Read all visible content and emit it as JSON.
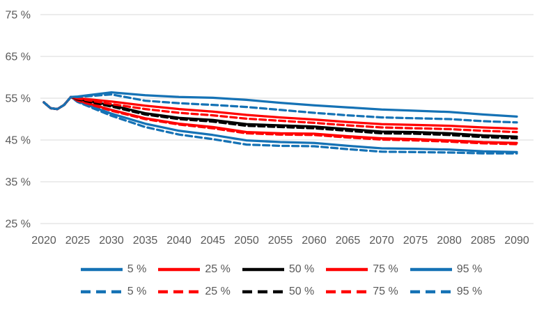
{
  "page": {
    "background": "#FFFFFF",
    "text_color": "#595959",
    "gridline_color": "#D9D9D9"
  },
  "chart_data": {
    "type": "line",
    "title": "",
    "xlabel": "",
    "ylabel": "",
    "grid": "horizontal",
    "legend_position": "bottom-two-rows",
    "xlim": [
      2020,
      2090
    ],
    "ylim": [
      25,
      75
    ],
    "xticks": [
      2020,
      2025,
      2030,
      2035,
      2040,
      2045,
      2050,
      2055,
      2060,
      2065,
      2070,
      2075,
      2080,
      2085,
      2090
    ],
    "yticks": [
      {
        "value": 25,
        "label": "25 %"
      },
      {
        "value": 35,
        "label": "35 %"
      },
      {
        "value": 45,
        "label": "45 %"
      },
      {
        "value": 55,
        "label": "55 %"
      },
      {
        "value": 65,
        "label": "65 %"
      },
      {
        "value": 75,
        "label": "75 %"
      }
    ],
    "x": [
      2020,
      2021,
      2022,
      2023,
      2024,
      2025,
      2030,
      2035,
      2040,
      2045,
      2050,
      2055,
      2060,
      2065,
      2070,
      2075,
      2080,
      2085,
      2090
    ],
    "series": [
      {
        "name": "5 %",
        "line_style": "solid",
        "color": "#1572B5",
        "values": [
          54.0,
          52.6,
          52.4,
          53.4,
          55.3,
          54.2,
          51.3,
          48.9,
          47.2,
          46.2,
          44.9,
          44.5,
          44.3,
          43.6,
          43.0,
          42.9,
          42.7,
          42.3,
          42.1
        ]
      },
      {
        "name": "25 %",
        "line_style": "solid",
        "color": "#FF0000",
        "values": [
          54.0,
          52.6,
          52.4,
          53.4,
          55.3,
          54.5,
          52.2,
          50.2,
          48.9,
          48.1,
          46.9,
          46.6,
          46.5,
          45.9,
          45.4,
          45.2,
          44.9,
          44.5,
          44.3
        ]
      },
      {
        "name": "50 %",
        "line_style": "solid",
        "color": "#000000",
        "values": [
          54.0,
          52.6,
          52.4,
          53.4,
          55.3,
          54.8,
          53.3,
          51.4,
          50.3,
          49.8,
          48.8,
          48.5,
          48.2,
          47.6,
          47.0,
          46.9,
          46.6,
          46.1,
          45.8
        ]
      },
      {
        "name": "75 %",
        "line_style": "solid",
        "color": "#FF0000",
        "values": [
          54.0,
          52.6,
          52.4,
          53.4,
          55.3,
          55.0,
          54.2,
          53.2,
          52.4,
          51.8,
          51.0,
          50.4,
          49.9,
          49.3,
          48.8,
          48.6,
          48.4,
          48.0,
          47.7
        ]
      },
      {
        "name": "95 %",
        "line_style": "solid",
        "color": "#1572B5",
        "values": [
          54.0,
          52.6,
          52.4,
          53.4,
          55.3,
          55.4,
          56.4,
          55.7,
          55.3,
          55.1,
          54.6,
          53.9,
          53.3,
          52.8,
          52.3,
          52.0,
          51.7,
          51.1,
          50.6
        ]
      },
      {
        "name": "5 %",
        "line_style": "dashed",
        "color": "#1572B5",
        "values": [
          54.0,
          52.6,
          52.4,
          53.4,
          55.3,
          54.1,
          50.8,
          48.1,
          46.3,
          45.2,
          43.9,
          43.6,
          43.5,
          42.8,
          42.2,
          42.1,
          42.0,
          41.8,
          41.8
        ]
      },
      {
        "name": "25 %",
        "line_style": "dashed",
        "color": "#FF0000",
        "values": [
          54.0,
          52.6,
          52.4,
          53.4,
          55.3,
          54.4,
          52.0,
          50.0,
          48.7,
          47.8,
          46.6,
          46.3,
          46.2,
          45.6,
          45.1,
          44.9,
          44.6,
          44.2,
          44.0
        ]
      },
      {
        "name": "50 %",
        "line_style": "dashed",
        "color": "#000000",
        "values": [
          54.0,
          52.6,
          52.4,
          53.4,
          55.3,
          54.7,
          53.0,
          51.1,
          50.0,
          49.4,
          48.4,
          48.1,
          47.8,
          47.2,
          46.6,
          46.5,
          46.2,
          45.7,
          45.4
        ]
      },
      {
        "name": "75 %",
        "line_style": "dashed",
        "color": "#FF0000",
        "values": [
          54.0,
          52.6,
          52.4,
          53.4,
          55.3,
          54.9,
          53.6,
          52.4,
          51.5,
          50.9,
          50.1,
          49.6,
          49.1,
          48.5,
          48.0,
          47.8,
          47.6,
          47.2,
          46.9
        ]
      },
      {
        "name": "95 %",
        "line_style": "dashed",
        "color": "#1572B5",
        "values": [
          54.0,
          52.6,
          52.4,
          53.4,
          55.3,
          55.3,
          55.9,
          54.4,
          53.8,
          53.4,
          52.9,
          52.2,
          51.5,
          50.9,
          50.4,
          50.2,
          50.0,
          49.5,
          49.2
        ]
      }
    ],
    "legend_rows": [
      {
        "style": "solid",
        "entries": [
          "5 %",
          "25 %",
          "50 %",
          "75 %",
          "95 %"
        ]
      },
      {
        "style": "dashed",
        "entries": [
          "5 %",
          "25 %",
          "50 %",
          "75 %",
          "95 %"
        ]
      }
    ]
  }
}
